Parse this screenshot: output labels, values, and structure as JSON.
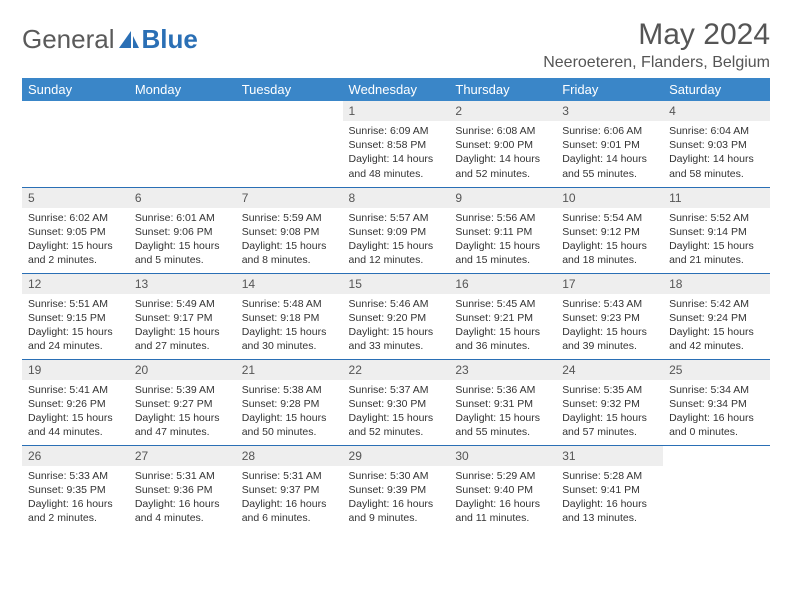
{
  "logo": {
    "text1": "General",
    "text2": "Blue"
  },
  "title": "May 2024",
  "location": "Neeroeteren, Flanders, Belgium",
  "colors": {
    "header_bg": "#3a86c8",
    "border": "#2a6fb5",
    "daynum_bg": "#eeeeee",
    "text": "#333333",
    "title_text": "#555555"
  },
  "weekdays": [
    "Sunday",
    "Monday",
    "Tuesday",
    "Wednesday",
    "Thursday",
    "Friday",
    "Saturday"
  ],
  "weeks": [
    [
      null,
      null,
      null,
      {
        "n": "1",
        "sr": "6:09 AM",
        "ss": "8:58 PM",
        "dl": "14 hours and 48 minutes."
      },
      {
        "n": "2",
        "sr": "6:08 AM",
        "ss": "9:00 PM",
        "dl": "14 hours and 52 minutes."
      },
      {
        "n": "3",
        "sr": "6:06 AM",
        "ss": "9:01 PM",
        "dl": "14 hours and 55 minutes."
      },
      {
        "n": "4",
        "sr": "6:04 AM",
        "ss": "9:03 PM",
        "dl": "14 hours and 58 minutes."
      }
    ],
    [
      {
        "n": "5",
        "sr": "6:02 AM",
        "ss": "9:05 PM",
        "dl": "15 hours and 2 minutes."
      },
      {
        "n": "6",
        "sr": "6:01 AM",
        "ss": "9:06 PM",
        "dl": "15 hours and 5 minutes."
      },
      {
        "n": "7",
        "sr": "5:59 AM",
        "ss": "9:08 PM",
        "dl": "15 hours and 8 minutes."
      },
      {
        "n": "8",
        "sr": "5:57 AM",
        "ss": "9:09 PM",
        "dl": "15 hours and 12 minutes."
      },
      {
        "n": "9",
        "sr": "5:56 AM",
        "ss": "9:11 PM",
        "dl": "15 hours and 15 minutes."
      },
      {
        "n": "10",
        "sr": "5:54 AM",
        "ss": "9:12 PM",
        "dl": "15 hours and 18 minutes."
      },
      {
        "n": "11",
        "sr": "5:52 AM",
        "ss": "9:14 PM",
        "dl": "15 hours and 21 minutes."
      }
    ],
    [
      {
        "n": "12",
        "sr": "5:51 AM",
        "ss": "9:15 PM",
        "dl": "15 hours and 24 minutes."
      },
      {
        "n": "13",
        "sr": "5:49 AM",
        "ss": "9:17 PM",
        "dl": "15 hours and 27 minutes."
      },
      {
        "n": "14",
        "sr": "5:48 AM",
        "ss": "9:18 PM",
        "dl": "15 hours and 30 minutes."
      },
      {
        "n": "15",
        "sr": "5:46 AM",
        "ss": "9:20 PM",
        "dl": "15 hours and 33 minutes."
      },
      {
        "n": "16",
        "sr": "5:45 AM",
        "ss": "9:21 PM",
        "dl": "15 hours and 36 minutes."
      },
      {
        "n": "17",
        "sr": "5:43 AM",
        "ss": "9:23 PM",
        "dl": "15 hours and 39 minutes."
      },
      {
        "n": "18",
        "sr": "5:42 AM",
        "ss": "9:24 PM",
        "dl": "15 hours and 42 minutes."
      }
    ],
    [
      {
        "n": "19",
        "sr": "5:41 AM",
        "ss": "9:26 PM",
        "dl": "15 hours and 44 minutes."
      },
      {
        "n": "20",
        "sr": "5:39 AM",
        "ss": "9:27 PM",
        "dl": "15 hours and 47 minutes."
      },
      {
        "n": "21",
        "sr": "5:38 AM",
        "ss": "9:28 PM",
        "dl": "15 hours and 50 minutes."
      },
      {
        "n": "22",
        "sr": "5:37 AM",
        "ss": "9:30 PM",
        "dl": "15 hours and 52 minutes."
      },
      {
        "n": "23",
        "sr": "5:36 AM",
        "ss": "9:31 PM",
        "dl": "15 hours and 55 minutes."
      },
      {
        "n": "24",
        "sr": "5:35 AM",
        "ss": "9:32 PM",
        "dl": "15 hours and 57 minutes."
      },
      {
        "n": "25",
        "sr": "5:34 AM",
        "ss": "9:34 PM",
        "dl": "16 hours and 0 minutes."
      }
    ],
    [
      {
        "n": "26",
        "sr": "5:33 AM",
        "ss": "9:35 PM",
        "dl": "16 hours and 2 minutes."
      },
      {
        "n": "27",
        "sr": "5:31 AM",
        "ss": "9:36 PM",
        "dl": "16 hours and 4 minutes."
      },
      {
        "n": "28",
        "sr": "5:31 AM",
        "ss": "9:37 PM",
        "dl": "16 hours and 6 minutes."
      },
      {
        "n": "29",
        "sr": "5:30 AM",
        "ss": "9:39 PM",
        "dl": "16 hours and 9 minutes."
      },
      {
        "n": "30",
        "sr": "5:29 AM",
        "ss": "9:40 PM",
        "dl": "16 hours and 11 minutes."
      },
      {
        "n": "31",
        "sr": "5:28 AM",
        "ss": "9:41 PM",
        "dl": "16 hours and 13 minutes."
      },
      null
    ]
  ],
  "labels": {
    "sunrise": "Sunrise:",
    "sunset": "Sunset:",
    "daylight": "Daylight:"
  }
}
